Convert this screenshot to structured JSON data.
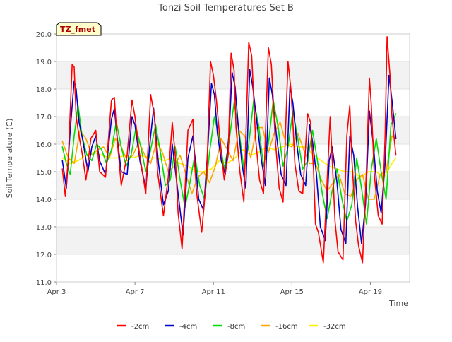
{
  "chart_data": {
    "type": "line",
    "title": "Tonzi Soil Temperatures Set B",
    "xlabel": "Time",
    "ylabel": "Soil Temperature (C)",
    "annotation": "TZ_fmet",
    "x_domain_days": [
      3,
      21.0
    ],
    "ylim": [
      11.0,
      20.0
    ],
    "y_ticks": [
      11.0,
      12.0,
      13.0,
      14.0,
      15.0,
      16.0,
      17.0,
      18.0,
      19.0,
      20.0
    ],
    "y_tick_labels": [
      "11.0",
      "12.0",
      "13.0",
      "14.0",
      "15.0",
      "16.0",
      "17.0",
      "18.0",
      "19.0",
      "20.0"
    ],
    "x_ticks": [
      3,
      7,
      11,
      15,
      19
    ],
    "x_tick_labels": [
      "Apr 3",
      "Apr 7",
      "Apr 11",
      "Apr 15",
      "Apr 19"
    ],
    "grid": "horizontal bands",
    "legend_position": "bottom",
    "colors": {
      "-2cm": "#ff0000",
      "-4cm": "#0000cc",
      "-8cm": "#00dd00",
      "-16cm": "#ffa500",
      "-32cm": "#ffee00"
    },
    "series": [
      {
        "name": "-2cm",
        "x": [
          3.3,
          3.45,
          3.6,
          3.8,
          3.9,
          4.0,
          4.15,
          4.3,
          4.5,
          4.75,
          5.0,
          5.2,
          5.5,
          5.8,
          5.95,
          6.1,
          6.3,
          6.6,
          6.85,
          7.0,
          7.2,
          7.55,
          7.8,
          8.0,
          8.15,
          8.45,
          8.7,
          8.9,
          9.05,
          9.2,
          9.4,
          9.7,
          9.95,
          10.05,
          10.15,
          10.4,
          10.65,
          10.85,
          11.0,
          11.15,
          11.3,
          11.55,
          11.75,
          11.9,
          12.05,
          12.15,
          12.35,
          12.55,
          12.8,
          12.95,
          13.05,
          13.15,
          13.35,
          13.55,
          13.8,
          13.95,
          14.05,
          14.15,
          14.35,
          14.55,
          14.8,
          14.95,
          15.05,
          15.15,
          15.35,
          15.55,
          15.8,
          15.95,
          16.1,
          16.2,
          16.35,
          16.6,
          16.8,
          16.95,
          17.05,
          17.2,
          17.35,
          17.6,
          17.8,
          17.95,
          18.05,
          18.25,
          18.4,
          18.6,
          18.8,
          18.95,
          19.05,
          19.2,
          19.4,
          19.6,
          19.75,
          19.85,
          20.0,
          20.1,
          20.3
        ],
        "values": [
          15.1,
          14.1,
          15.5,
          18.9,
          18.8,
          17.0,
          16.3,
          15.7,
          14.7,
          16.2,
          16.5,
          15.0,
          14.8,
          17.6,
          17.7,
          16.1,
          14.5,
          15.6,
          17.6,
          17.0,
          15.8,
          14.2,
          17.8,
          17.0,
          15.0,
          13.4,
          14.8,
          16.8,
          15.6,
          13.5,
          12.2,
          16.5,
          16.9,
          15.2,
          14.2,
          12.8,
          14.8,
          19.0,
          18.5,
          17.6,
          16.4,
          14.7,
          15.6,
          19.3,
          18.7,
          16.6,
          15.0,
          13.9,
          19.7,
          19.2,
          17.7,
          16.2,
          14.7,
          14.2,
          19.5,
          18.9,
          17.6,
          16.2,
          14.4,
          13.9,
          19.0,
          18.0,
          16.8,
          15.3,
          14.3,
          14.2,
          17.1,
          16.8,
          15.1,
          13.1,
          12.8,
          11.7,
          14.7,
          17.0,
          15.5,
          13.2,
          12.1,
          11.8,
          16.3,
          17.4,
          15.5,
          13.2,
          12.3,
          11.7,
          15.1,
          18.4,
          17.4,
          14.9,
          13.4,
          13.1,
          16.3,
          19.9,
          18.5,
          17.0,
          15.6
        ]
      },
      {
        "name": "-4cm",
        "x": [
          3.3,
          3.5,
          3.7,
          3.9,
          4.0,
          4.15,
          4.35,
          4.6,
          4.8,
          5.0,
          5.2,
          5.5,
          5.8,
          5.95,
          6.1,
          6.3,
          6.6,
          6.85,
          7.0,
          7.25,
          7.55,
          7.8,
          7.95,
          8.2,
          8.45,
          8.7,
          8.9,
          9.1,
          9.3,
          9.45,
          9.7,
          9.95,
          10.1,
          10.25,
          10.5,
          10.7,
          10.9,
          11.05,
          11.2,
          11.4,
          11.6,
          11.8,
          11.95,
          12.1,
          12.25,
          12.45,
          12.65,
          12.85,
          13.0,
          13.2,
          13.45,
          13.65,
          13.85,
          14.0,
          14.2,
          14.45,
          14.7,
          14.9,
          15.05,
          15.25,
          15.45,
          15.7,
          15.9,
          16.05,
          16.25,
          16.45,
          16.7,
          16.9,
          17.05,
          17.3,
          17.5,
          17.75,
          17.95,
          18.15,
          18.35,
          18.55,
          18.75,
          18.95,
          19.15,
          19.35,
          19.55,
          19.75,
          19.95,
          20.1,
          20.3
        ],
        "values": [
          15.4,
          14.4,
          16.5,
          18.3,
          18.0,
          16.8,
          16.1,
          15.0,
          15.9,
          16.3,
          15.4,
          14.9,
          16.9,
          17.3,
          16.2,
          15.0,
          14.9,
          17.0,
          16.7,
          15.4,
          14.4,
          16.3,
          17.3,
          15.3,
          13.8,
          14.3,
          16.0,
          14.8,
          13.6,
          12.7,
          15.5,
          16.3,
          15.2,
          14.0,
          13.6,
          15.7,
          18.2,
          17.8,
          16.4,
          15.4,
          14.9,
          16.4,
          18.6,
          18.1,
          16.8,
          15.3,
          14.4,
          18.7,
          18.1,
          16.9,
          15.4,
          14.5,
          18.4,
          17.8,
          16.4,
          14.9,
          14.5,
          18.1,
          17.5,
          16.0,
          14.9,
          14.5,
          16.7,
          16.1,
          14.9,
          13.0,
          12.5,
          15.4,
          15.9,
          14.6,
          12.9,
          12.4,
          16.3,
          15.6,
          13.7,
          12.4,
          13.8,
          17.2,
          16.0,
          14.3,
          13.5,
          15.3,
          18.5,
          17.6,
          16.2
        ]
      },
      {
        "name": "-8cm",
        "x": [
          3.3,
          3.5,
          3.7,
          3.9,
          4.1,
          4.3,
          4.55,
          4.8,
          5.05,
          5.3,
          5.55,
          5.8,
          6.05,
          6.3,
          6.55,
          6.8,
          7.05,
          7.3,
          7.55,
          7.8,
          8.05,
          8.3,
          8.55,
          8.8,
          9.05,
          9.3,
          9.55,
          9.8,
          10.05,
          10.3,
          10.55,
          10.8,
          11.05,
          11.3,
          11.55,
          11.8,
          12.05,
          12.3,
          12.55,
          12.8,
          13.05,
          13.3,
          13.55,
          13.8,
          14.05,
          14.3,
          14.55,
          14.8,
          15.05,
          15.3,
          15.55,
          15.8,
          16.05,
          16.3,
          16.55,
          16.8,
          17.05,
          17.3,
          17.55,
          17.8,
          18.05,
          18.3,
          18.55,
          18.8,
          19.05,
          19.3,
          19.55,
          19.8,
          20.05,
          20.3
        ],
        "values": [
          15.9,
          15.3,
          14.9,
          16.3,
          17.4,
          16.3,
          15.6,
          15.4,
          16.0,
          15.8,
          15.3,
          15.8,
          16.8,
          15.9,
          15.2,
          15.6,
          16.6,
          15.9,
          15.0,
          15.8,
          16.7,
          15.7,
          14.5,
          14.7,
          15.9,
          14.7,
          13.7,
          14.6,
          15.6,
          14.5,
          14.0,
          15.7,
          17.0,
          16.2,
          15.1,
          16.1,
          17.5,
          16.5,
          15.1,
          16.0,
          17.6,
          16.7,
          15.2,
          16.0,
          17.6,
          16.6,
          15.2,
          15.9,
          17.2,
          16.2,
          15.1,
          15.4,
          16.5,
          15.4,
          14.2,
          13.3,
          14.3,
          15.1,
          14.0,
          13.2,
          13.8,
          15.5,
          14.4,
          13.1,
          15.1,
          16.2,
          15.0,
          14.0,
          16.7,
          17.1
        ]
      },
      {
        "name": "-16cm",
        "x": [
          3.3,
          3.6,
          3.9,
          4.2,
          4.5,
          4.8,
          5.1,
          5.4,
          5.7,
          6.0,
          6.3,
          6.6,
          6.9,
          7.2,
          7.5,
          7.8,
          8.1,
          8.4,
          8.7,
          9.0,
          9.3,
          9.6,
          9.9,
          10.2,
          10.5,
          10.8,
          11.1,
          11.4,
          11.7,
          12.0,
          12.3,
          12.6,
          12.9,
          13.2,
          13.5,
          13.8,
          14.1,
          14.4,
          14.7,
          15.0,
          15.3,
          15.6,
          15.9,
          16.2,
          16.5,
          16.8,
          17.1,
          17.4,
          17.7,
          18.0,
          18.3,
          18.6,
          18.9,
          19.2,
          19.5,
          19.8,
          20.1,
          20.3
        ],
        "values": [
          16.1,
          15.5,
          15.3,
          16.5,
          16.2,
          15.6,
          15.8,
          15.9,
          15.5,
          16.2,
          15.9,
          15.4,
          15.6,
          16.1,
          15.6,
          15.3,
          16.1,
          15.7,
          15.0,
          15.2,
          15.6,
          14.9,
          14.2,
          14.8,
          15.0,
          14.6,
          15.2,
          16.2,
          15.8,
          15.4,
          16.5,
          16.3,
          15.5,
          16.6,
          16.6,
          15.7,
          16.4,
          16.8,
          16.0,
          15.9,
          16.4,
          15.8,
          15.3,
          15.3,
          14.7,
          14.3,
          14.6,
          14.9,
          14.2,
          14.1,
          14.7,
          14.9,
          14.0,
          14.0,
          14.9,
          15.0,
          16.3,
          16.2
        ]
      },
      {
        "name": "-32cm",
        "x": [
          3.3,
          3.7,
          4.1,
          4.5,
          4.9,
          5.3,
          5.7,
          6.1,
          6.5,
          6.9,
          7.3,
          7.7,
          8.1,
          8.5,
          8.9,
          9.3,
          9.7,
          10.1,
          10.5,
          10.9,
          11.3,
          11.7,
          12.1,
          12.5,
          12.9,
          13.3,
          13.7,
          14.1,
          14.5,
          14.9,
          15.3,
          15.7,
          16.1,
          16.5,
          16.9,
          17.3,
          17.7,
          18.1,
          18.5,
          18.9,
          19.3,
          19.7,
          20.1,
          20.3
        ],
        "values": [
          15.5,
          15.3,
          15.4,
          15.6,
          15.7,
          15.6,
          15.5,
          15.5,
          15.6,
          15.5,
          15.6,
          15.5,
          15.5,
          15.4,
          15.5,
          15.3,
          15.2,
          15.0,
          15.0,
          15.1,
          15.4,
          15.3,
          15.5,
          15.8,
          15.6,
          15.7,
          15.9,
          15.8,
          15.9,
          16.0,
          15.9,
          15.9,
          15.6,
          15.4,
          15.2,
          15.1,
          15.0,
          15.0,
          14.8,
          15.0,
          15.0,
          14.8,
          15.3,
          15.5
        ]
      }
    ]
  }
}
